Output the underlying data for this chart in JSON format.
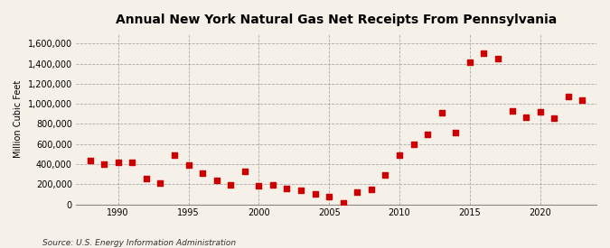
{
  "title": "Annual New York Natural Gas Net Receipts From Pennsylvania",
  "ylabel": "Million Cubic Feet",
  "source": "Source: U.S. Energy Information Administration",
  "background_color": "#f5f0e8",
  "marker_color": "#cc0000",
  "years": [
    1988,
    1989,
    1990,
    1991,
    1992,
    1993,
    1994,
    1995,
    1996,
    1997,
    1998,
    1999,
    2000,
    2001,
    2002,
    2003,
    2004,
    2005,
    2006,
    2007,
    2008,
    2009,
    2010,
    2011,
    2012,
    2013,
    2014,
    2015,
    2016,
    2017,
    2018,
    2019,
    2020,
    2021,
    2022,
    2023
  ],
  "values": [
    435000,
    400000,
    415000,
    415000,
    260000,
    210000,
    490000,
    395000,
    310000,
    235000,
    195000,
    330000,
    185000,
    195000,
    160000,
    140000,
    100000,
    80000,
    10000,
    120000,
    145000,
    290000,
    490000,
    600000,
    700000,
    910000,
    710000,
    1410000,
    1500000,
    1450000,
    930000,
    870000,
    920000,
    860000,
    1070000,
    1040000
  ],
  "xlim": [
    1987,
    2024
  ],
  "ylim": [
    0,
    1700000
  ],
  "yticks": [
    0,
    200000,
    400000,
    600000,
    800000,
    1000000,
    1200000,
    1400000,
    1600000
  ],
  "xticks": [
    1990,
    1995,
    2000,
    2005,
    2010,
    2015,
    2020
  ]
}
